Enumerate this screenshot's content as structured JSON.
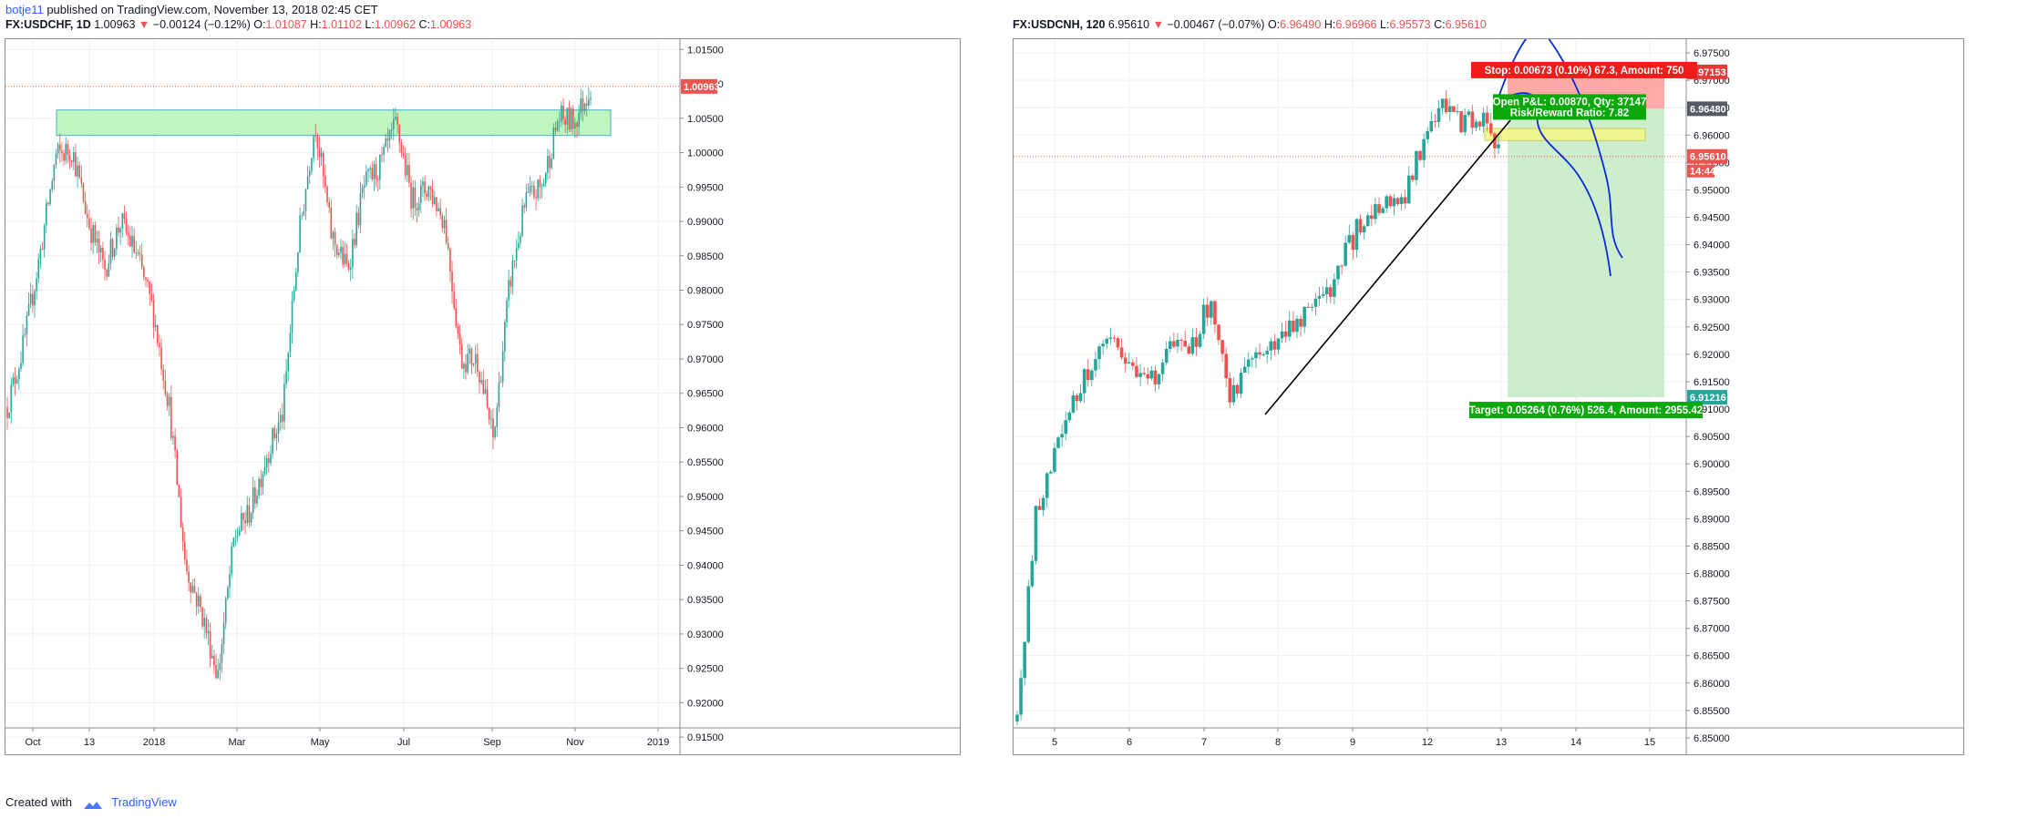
{
  "header": {
    "user": "botje11",
    "published_text": "published on TradingView.com, November 13, 2018 02:45 CET"
  },
  "footer": {
    "created_with": "Created with",
    "brand": "TradingView"
  },
  "colors": {
    "up": "#26a69a",
    "down": "#ef5350",
    "zone_green": "#b9f6b9",
    "stop_fill": "#ff9a9a",
    "target_fill": "#c8ecc8",
    "entry_zone": "#f3f78a",
    "arc_line": "#0a2ad8"
  },
  "left_chart": {
    "symbol": "FX:USDCHF, 1D",
    "price": "1.00963",
    "change": "−0.00124 (−0.12%)",
    "o_label": "O:",
    "o": "1.01087",
    "h_label": "H:",
    "h": "1.01102",
    "l_label": "L:",
    "l": "1.00962",
    "c_label": "C:",
    "c": "1.00963",
    "last_price_tag": "1.00963"
  },
  "right_chart": {
    "symbol": "FX:USDCNH, 120",
    "price": "6.95610",
    "change": "−0.00467 (−0.07%)",
    "o_label": "O:",
    "o": "6.96490",
    "h_label": "H:",
    "h": "6.96966",
    "l_label": "L:",
    "l": "6.95573",
    "c_label": "C:",
    "c": "6.95610",
    "stop_label": "Stop: 0.00673 (0.10%) 67.3, Amount: 750",
    "pnl_label": "Open P&L: 0.00870, Qty: 37147",
    "rr_label": "Risk/Reward Ratio: 7.82",
    "target_label": "Target: 0.05264 (0.76%) 526.4, Amount: 2955.42",
    "tag_stop": "6.97153",
    "tag_entry": "6.96480",
    "tag_last": "6.95610",
    "tag_countdown": "14:44",
    "tag_target": "6.91216"
  },
  "chart_data": [
    {
      "type": "candlestick",
      "symbol": "FX:USDCHF",
      "interval": "1D",
      "title": "FX:USDCHF, 1D",
      "x_ticks": [
        "Oct",
        "13",
        "2018",
        "Mar",
        "May",
        "Jul",
        "Sep",
        "Nov",
        "2019"
      ],
      "y_ticks": [
        "0.91500",
        "0.92000",
        "0.92500",
        "0.93000",
        "0.93500",
        "0.94000",
        "0.94500",
        "0.95000",
        "0.95500",
        "0.96000",
        "0.96500",
        "0.97000",
        "0.97500",
        "0.98000",
        "0.98500",
        "0.99000",
        "0.99500",
        "1.00000",
        "1.00500",
        "1.01000",
        "1.01500"
      ],
      "ylim": [
        0.9125,
        1.0165
      ],
      "grid": true,
      "last_price": 1.00963,
      "approx_close_path": [
        [
          "2017-09-22",
          0.963
        ],
        [
          "2017-10-01",
          0.972
        ],
        [
          "2017-10-15",
          0.985
        ],
        [
          "2017-10-27",
          0.9995
        ],
        [
          "2017-11-05",
          1.0005
        ],
        [
          "2017-11-15",
          0.99
        ],
        [
          "2017-11-28",
          0.983
        ],
        [
          "2017-12-10",
          0.99
        ],
        [
          "2017-12-22",
          0.985
        ],
        [
          "2018-01-05",
          0.977
        ],
        [
          "2018-01-15",
          0.963
        ],
        [
          "2018-01-25",
          0.94
        ],
        [
          "2018-02-05",
          0.933
        ],
        [
          "2018-02-16",
          0.924
        ],
        [
          "2018-02-28",
          0.944
        ],
        [
          "2018-03-15",
          0.948
        ],
        [
          "2018-03-28",
          0.956
        ],
        [
          "2018-04-10",
          0.962
        ],
        [
          "2018-04-25",
          0.988
        ],
        [
          "2018-05-10",
          1.0045
        ],
        [
          "2018-05-25",
          0.988
        ],
        [
          "2018-06-05",
          0.983
        ],
        [
          "2018-06-15",
          0.995
        ],
        [
          "2018-06-28",
          0.998
        ],
        [
          "2018-07-12",
          1.004
        ],
        [
          "2018-07-25",
          0.993
        ],
        [
          "2018-08-05",
          0.995
        ],
        [
          "2018-08-18",
          0.99
        ],
        [
          "2018-08-28",
          0.97
        ],
        [
          "2018-09-08",
          0.97
        ],
        [
          "2018-09-20",
          0.958
        ],
        [
          "2018-09-28",
          0.981
        ],
        [
          "2018-10-08",
          0.993
        ],
        [
          "2018-10-20",
          0.995
        ],
        [
          "2018-10-30",
          1.005
        ],
        [
          "2018-11-09",
          1.0045
        ],
        [
          "2018-11-13",
          1.00963
        ]
      ],
      "horizontal_zone": {
        "from": 1.0025,
        "to": 1.0062
      }
    },
    {
      "type": "candlestick",
      "symbol": "FX:USDCNH",
      "interval": "120",
      "title": "FX:USDCNH, 120",
      "x_ticks": [
        "5",
        "6",
        "7",
        "8",
        "9",
        "12",
        "13",
        "14",
        "15"
      ],
      "y_ticks": [
        "6.85000",
        "6.85500",
        "6.86000",
        "6.86500",
        "6.87000",
        "6.87500",
        "6.88000",
        "6.88500",
        "6.89000",
        "6.89500",
        "6.90000",
        "6.90500",
        "6.91000",
        "6.91500",
        "6.92000",
        "6.92500",
        "6.93000",
        "6.93500",
        "6.94000",
        "6.94500",
        "6.95000",
        "6.95500",
        "6.96000",
        "6.96500",
        "6.97000",
        "6.97500"
      ],
      "ylim": [
        6.847,
        6.9775
      ],
      "grid": true,
      "approx_close_path": [
        [
          "5",
          6.853
        ],
        [
          "5",
          6.892
        ],
        [
          "5",
          6.902
        ],
        [
          "5",
          6.912
        ],
        [
          "5",
          6.92
        ],
        [
          "6",
          6.921
        ],
        [
          "6",
          6.918
        ],
        [
          "6",
          6.915
        ],
        [
          "6",
          6.922
        ],
        [
          "7",
          6.92
        ],
        [
          "7",
          6.93
        ],
        [
          "7",
          6.913
        ],
        [
          "7",
          6.917
        ],
        [
          "8",
          6.921
        ],
        [
          "8",
          6.925
        ],
        [
          "8",
          6.928
        ],
        [
          "9",
          6.93
        ],
        [
          "9",
          6.938
        ],
        [
          "9",
          6.945
        ],
        [
          "9",
          6.947
        ],
        [
          "12",
          6.948
        ],
        [
          "12",
          6.958
        ],
        [
          "12",
          6.965
        ],
        [
          "12",
          6.962
        ],
        [
          "13",
          6.964
        ],
        [
          "13",
          6.9561
        ]
      ],
      "position": {
        "entry": 6.9648,
        "stop": 6.97153,
        "target": 6.91216,
        "last": 6.9561
      }
    }
  ]
}
